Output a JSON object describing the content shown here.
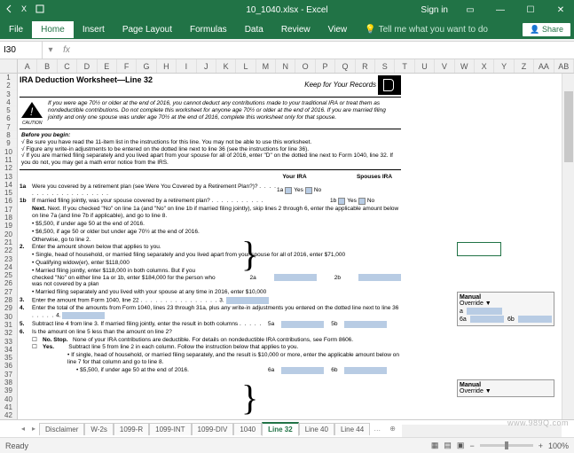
{
  "title": "10_1040.xlsx - Excel",
  "signin": "Sign in",
  "tabs": [
    "File",
    "Home",
    "Insert",
    "Page Layout",
    "Formulas",
    "Data",
    "Review",
    "View"
  ],
  "active_tab": "Home",
  "tellme": "Tell me what you want to do",
  "share": "Share",
  "namebox": "I30",
  "cols": [
    "A",
    "B",
    "C",
    "D",
    "E",
    "F",
    "G",
    "H",
    "I",
    "J",
    "K",
    "L",
    "M",
    "N",
    "O",
    "P",
    "Q",
    "R",
    "S",
    "T",
    "U",
    "V",
    "W",
    "X",
    "Y",
    "Z",
    "AA",
    "AB"
  ],
  "ws": {
    "title": "IRA Deduction Worksheet—Line 32",
    "keep": "Keep for Your Records",
    "caution": "If you were age 70½ or older at the end of 2016, you cannot deduct any contributions made to your traditional IRA or treat them as nondeductible contributions. Do not complete this worksheet for anyone age 70½ or older at the end of 2016. If you are married filing jointly and only one spouse was under age 70½ at the end of 2016, complete this worksheet only for that spouse.",
    "before_label": "Before you begin:",
    "before1": "√ Be sure you have read the 11-item list in the instructions for this line. You may not be able to use this worksheet.",
    "before2": "√ Figure any write-in adjustments to be entered on the dotted line next to line 36 (see the instructions for line 36).",
    "before3": "√ If you are married filing separately and you lived apart from your spouse for all of 2016, enter \"D\" on the dotted line next to Form 1040, line 32. If you do not, you may get a math error notice from the IRS.",
    "your_ira": "Your IRA",
    "spouse_ira": "Spouses IRA",
    "l1a": "Were you covered by a retirement plan (see Were You Covered by a Retirement Plan?)?",
    "l1a_num": "1a",
    "l1b": "If married filing jointly, was your spouse covered by a retirement plan?",
    "l1b_num": "1b",
    "yes": "Yes",
    "no": "No",
    "next": "Next. If you checked \"No\" on line 1a (and \"No\" on line 1b if married filing jointly), skip lines 2 through 6, enter the applicable amount below on line 7a (and line 7b if applicable), and go to line 8.",
    "bullet1": "$5,500, if under age 50 at the end of 2016.",
    "bullet2": "$6,500, if age 50 or older but under age 70½ at the end of 2016.",
    "bullet3": "Otherwise, go to line 2.",
    "l2": "Enter the amount shown below that applies to you.",
    "l2a": "Single, head of household, or married filing separately and you lived apart from your spouse for all of 2016, enter $71,000",
    "l2b": "Qualifying widow(er), enter $118,000",
    "l2c": "Married filing jointly, enter $118,000 in both columns. But if you checked \"No\" on either line 1a or 1b, enter $184,000 for the person who was not covered by a plan",
    "l2d": "Married filing separately and you lived with your spouse at any time in 2016, enter $10,000",
    "l2_2a": "2a",
    "l2_2b": "2b",
    "l3": "Enter the amount from Form 1040, line 22",
    "l3n": "3.",
    "l4": "Enter the total of the amounts from Form 1040, lines 23 through 31a, plus any write-in adjustments you entered on the dotted line next to line 36",
    "l4n": "4.",
    "l5": "Subtract line 4 from line 3. If married filing jointly, enter the result in both columns",
    "l5n": "5a",
    "l5n2": "5b",
    "l6": "Is the amount on line 5 less than the amount on line 2?",
    "l6_no": "No.   Stop.",
    "l6_no_txt": "None of your IRA contributions are deductible. For details on nondeductible IRA contributions, see Form 8606.",
    "l6_yes": "Yes.",
    "l6_yes_txt": "Subtract line 5 from line 2 in each column. Follow the instruction below that applies to you.",
    "l6_yes_a": "If single, head of household, or married filing separately, and the result is $10,000 or more, enter the applicable amount below on line 7 for that column and go to line 8.",
    "l6_yes_b": "$5,500, if under age 50 at the end of 2016.",
    "l6_6a": "6a",
    "l6_6b": "6b",
    "manual": "Manual",
    "override": "Override ▼"
  },
  "sheets": [
    "Disclaimer",
    "W-2s",
    "1099-R",
    "1099-INT",
    "1099-DIV",
    "1040",
    "Line 32",
    "Line 40",
    "Line 44"
  ],
  "active_sheet": "Line 32",
  "status": "Ready",
  "zoom": "100%",
  "watermark": "www.989Q.com"
}
